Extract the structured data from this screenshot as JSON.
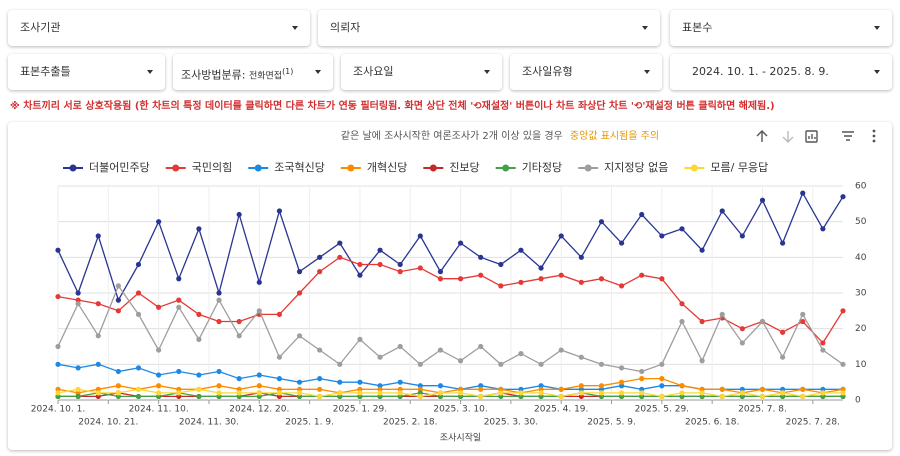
{
  "filters": {
    "row1": [
      "조사기관",
      "의뢰자",
      "표본수"
    ],
    "row2": [
      "표본추출틀",
      {
        "label": "조사방법분류:",
        "value": "전화면접",
        "count": "(1)"
      },
      "조사요일",
      "조사일유형",
      "2024. 10. 1. - 2025. 8. 9."
    ]
  },
  "notice": "※ 차트끼리 서로 상호작용됨 (한 차트의 특정 데이터를 클릭하면 다른 차트가 연동 필터링됨. 화면 상단 전체 '⟲재설정' 버튼이나 차트 좌상단 차트 '⟲'재설정 버튼 클릭하면 해제됨.)",
  "chart_data": {
    "type": "line",
    "subtitle": "같은 날에 조사시작한 여론조사가 2개 이상 있을 경우",
    "subtitle_highlight": "중앙값 표시됨을 주의",
    "x_label": "조사시작일",
    "legend": "top",
    "grid": true,
    "x": [
      "2024-10-01",
      "2024-10-09",
      "2024-10-17",
      "2024-10-25",
      "2024-11-02",
      "2024-11-10",
      "2024-11-18",
      "2024-11-26",
      "2024-12-04",
      "2024-12-12",
      "2024-12-20",
      "2024-12-28",
      "2025-01-05",
      "2025-01-13",
      "2025-01-21",
      "2025-01-29",
      "2025-02-06",
      "2025-02-14",
      "2025-02-22",
      "2025-03-02",
      "2025-03-10",
      "2025-03-18",
      "2025-03-26",
      "2025-04-03",
      "2025-04-11",
      "2025-04-19",
      "2025-04-27",
      "2025-05-05",
      "2025-05-13",
      "2025-05-21",
      "2025-05-29",
      "2025-06-06",
      "2025-06-14",
      "2025-06-22",
      "2025-06-30",
      "2025-07-08",
      "2025-07-16",
      "2025-07-24",
      "2025-08-01",
      "2025-08-09"
    ],
    "xlim": [
      "2024-10-01",
      "2025-08-09"
    ],
    "xticks": [
      {
        "value": "2024-10-01",
        "label": "2024. 10. 1."
      },
      {
        "value": "2024-10-21",
        "label": "2024. 10. 21."
      },
      {
        "value": "2024-11-10",
        "label": "2024. 11. 10."
      },
      {
        "value": "2024-11-30",
        "label": "2024. 11. 30."
      },
      {
        "value": "2024-12-20",
        "label": "2024. 12. 20."
      },
      {
        "value": "2025-01-09",
        "label": "2025. 1. 9."
      },
      {
        "value": "2025-01-29",
        "label": "2025. 1. 29."
      },
      {
        "value": "2025-02-18",
        "label": "2025. 2. 18."
      },
      {
        "value": "2025-03-10",
        "label": "2025. 3. 10."
      },
      {
        "value": "2025-03-30",
        "label": "2025. 3. 30."
      },
      {
        "value": "2025-04-19",
        "label": "2025. 4. 19."
      },
      {
        "value": "2025-05-09",
        "label": "2025. 5. 9."
      },
      {
        "value": "2025-05-29",
        "label": "2025. 5. 29."
      },
      {
        "value": "2025-06-18",
        "label": "2025. 6. 18."
      },
      {
        "value": "2025-07-08",
        "label": "2025. 7. 8."
      },
      {
        "value": "2025-07-28",
        "label": "2025. 7. 28."
      }
    ],
    "ylim": [
      0,
      60
    ],
    "yticks": [
      0,
      10,
      20,
      30,
      40,
      50,
      60
    ],
    "series": [
      {
        "name": "더불어민주당",
        "color": "#283593",
        "values": [
          42,
          30,
          46,
          28,
          38,
          50,
          34,
          48,
          30,
          52,
          33,
          53,
          36,
          40,
          44,
          35,
          42,
          38,
          46,
          36,
          44,
          40,
          38,
          42,
          37,
          46,
          40,
          50,
          44,
          52,
          46,
          48,
          42,
          53,
          46,
          56,
          44,
          58,
          48,
          57
        ]
      },
      {
        "name": "국민의힘",
        "color": "#e53935",
        "values": [
          29,
          28,
          27,
          25,
          30,
          26,
          28,
          24,
          22,
          22,
          24,
          24,
          30,
          36,
          40,
          38,
          38,
          36,
          37,
          34,
          34,
          35,
          32,
          33,
          34,
          35,
          33,
          34,
          32,
          35,
          34,
          27,
          22,
          23,
          20,
          22,
          19,
          22,
          16,
          25
        ]
      },
      {
        "name": "조국혁신당",
        "color": "#1e88e5",
        "values": [
          10,
          9,
          10,
          8,
          9,
          7,
          8,
          7,
          8,
          6,
          7,
          6,
          5,
          6,
          5,
          5,
          4,
          5,
          4,
          4,
          3,
          4,
          3,
          3,
          4,
          3,
          3,
          3,
          4,
          3,
          4,
          4,
          3,
          3,
          3,
          3,
          3,
          3,
          3,
          3
        ]
      },
      {
        "name": "개혁신당",
        "color": "#fb8c00",
        "values": [
          3,
          2,
          3,
          4,
          3,
          4,
          3,
          3,
          4,
          3,
          4,
          3,
          3,
          3,
          2,
          3,
          3,
          3,
          3,
          2,
          3,
          3,
          3,
          2,
          3,
          3,
          4,
          4,
          5,
          6,
          6,
          4,
          3,
          3,
          2,
          3,
          2,
          3,
          2,
          3
        ]
      },
      {
        "name": "진보당",
        "color": "#c62828",
        "values": [
          1,
          1,
          1,
          2,
          1,
          1,
          1,
          1,
          1,
          1,
          2,
          1,
          1,
          1,
          1,
          1,
          1,
          1,
          1,
          1,
          1,
          1,
          2,
          1,
          1,
          1,
          1,
          1,
          1,
          1,
          1,
          1,
          1,
          1,
          1,
          1,
          1,
          1,
          1,
          1
        ]
      },
      {
        "name": "기타정당",
        "color": "#43a047",
        "values": [
          1,
          1,
          2,
          1,
          1,
          1,
          2,
          1,
          1,
          1,
          1,
          2,
          1,
          1,
          1,
          1,
          1,
          1,
          2,
          1,
          1,
          1,
          1,
          1,
          1,
          1,
          2,
          1,
          1,
          1,
          1,
          1,
          1,
          1,
          1,
          1,
          1,
          1,
          1,
          1
        ]
      },
      {
        "name": "지지정당 없음",
        "color": "#9e9e9e",
        "values": [
          15,
          27,
          18,
          32,
          24,
          14,
          26,
          17,
          28,
          18,
          25,
          12,
          18,
          14,
          10,
          17,
          12,
          15,
          10,
          14,
          11,
          15,
          10,
          13,
          10,
          14,
          12,
          10,
          9,
          8,
          10,
          22,
          11,
          24,
          16,
          22,
          12,
          24,
          14,
          10
        ]
      },
      {
        "name": "모름/ 무응답",
        "color": "#fdd835",
        "values": [
          2,
          3,
          2,
          2,
          3,
          2,
          2,
          3,
          2,
          2,
          2,
          2,
          2,
          1,
          2,
          2,
          2,
          2,
          1,
          2,
          2,
          1,
          2,
          2,
          2,
          1,
          2,
          2,
          2,
          2,
          1,
          2,
          2,
          1,
          2,
          1,
          2,
          1,
          2,
          2
        ]
      }
    ]
  }
}
